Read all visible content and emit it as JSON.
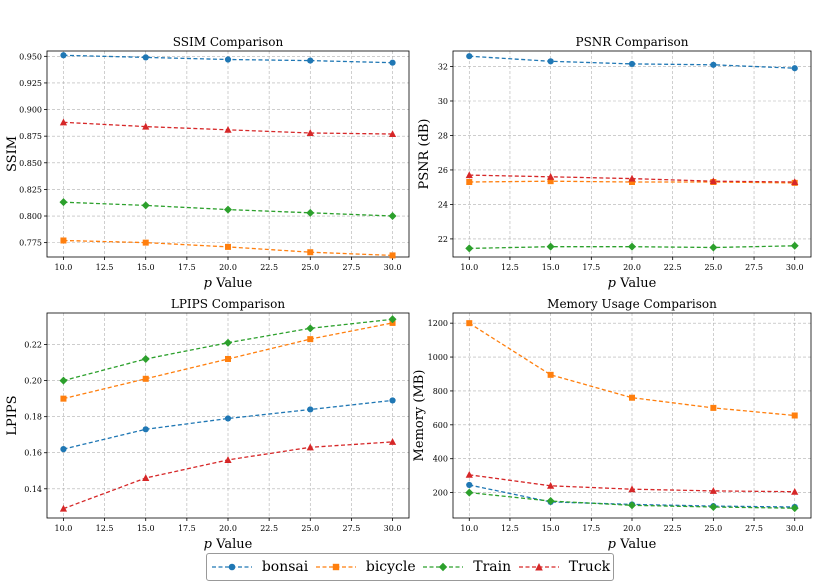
{
  "chart_data": [
    {
      "type": "line",
      "title": "SSIM Comparison",
      "xlabel": "p Value",
      "ylabel": "SSIM",
      "x": [
        10,
        15,
        20,
        25,
        30
      ],
      "xlim": [
        9.0,
        31.0
      ],
      "ylim": [
        0.7615,
        0.955
      ],
      "xticks": [
        "10.0",
        "12.5",
        "15.0",
        "17.5",
        "20.0",
        "22.5",
        "25.0",
        "27.5",
        "30.0"
      ],
      "yticks": [
        "0.775",
        "0.800",
        "0.825",
        "0.850",
        "0.875",
        "0.900",
        "0.925",
        "0.950"
      ],
      "series": [
        {
          "name": "bonsai",
          "values": [
            0.951,
            0.949,
            0.947,
            0.946,
            0.944
          ]
        },
        {
          "name": "bicycle",
          "values": [
            0.777,
            0.775,
            0.771,
            0.766,
            0.763
          ]
        },
        {
          "name": "Train",
          "values": [
            0.813,
            0.81,
            0.806,
            0.803,
            0.8
          ]
        },
        {
          "name": "Truck",
          "values": [
            0.888,
            0.884,
            0.881,
            0.878,
            0.877
          ]
        }
      ]
    },
    {
      "type": "line",
      "title": "PSNR Comparison",
      "xlabel": "p Value",
      "ylabel": "PSNR (dB)",
      "x": [
        10,
        15,
        20,
        25,
        30
      ],
      "xlim": [
        9.0,
        31.0
      ],
      "ylim": [
        20.95,
        32.9
      ],
      "xticks": [
        "10.0",
        "12.5",
        "15.0",
        "17.5",
        "20.0",
        "22.5",
        "25.0",
        "27.5",
        "30.0"
      ],
      "yticks": [
        "22",
        "24",
        "26",
        "28",
        "30",
        "32"
      ],
      "series": [
        {
          "name": "bonsai",
          "values": [
            32.6,
            32.3,
            32.15,
            32.1,
            31.9
          ]
        },
        {
          "name": "bicycle",
          "values": [
            25.3,
            25.35,
            25.3,
            25.3,
            25.25
          ]
        },
        {
          "name": "Train",
          "values": [
            21.45,
            21.55,
            21.55,
            21.5,
            21.6
          ]
        },
        {
          "name": "Truck",
          "values": [
            25.7,
            25.6,
            25.5,
            25.35,
            25.3
          ]
        }
      ]
    },
    {
      "type": "line",
      "title": "LPIPS Comparison",
      "xlabel": "p Value",
      "ylabel": "LPIPS",
      "x": [
        10,
        15,
        20,
        25,
        30
      ],
      "xlim": [
        9.0,
        31.0
      ],
      "ylim": [
        0.1238,
        0.2375
      ],
      "xticks": [
        "10.0",
        "12.5",
        "15.0",
        "17.5",
        "20.0",
        "22.5",
        "25.0",
        "27.5",
        "30.0"
      ],
      "yticks": [
        "0.14",
        "0.16",
        "0.18",
        "0.20",
        "0.22"
      ],
      "series": [
        {
          "name": "bonsai",
          "values": [
            0.162,
            0.173,
            0.179,
            0.184,
            0.189
          ]
        },
        {
          "name": "bicycle",
          "values": [
            0.19,
            0.201,
            0.212,
            0.223,
            0.232
          ]
        },
        {
          "name": "Train",
          "values": [
            0.2,
            0.212,
            0.221,
            0.229,
            0.234
          ]
        },
        {
          "name": "Truck",
          "values": [
            0.129,
            0.146,
            0.156,
            0.163,
            0.166
          ]
        }
      ]
    },
    {
      "type": "line",
      "title": "Memory Usage Comparison",
      "xlabel": "p Value",
      "ylabel": "Memory (MB)",
      "x": [
        10,
        15,
        20,
        25,
        30
      ],
      "xlim": [
        9.0,
        31.0
      ],
      "ylim": [
        50,
        1260
      ],
      "xticks": [
        "10.0",
        "12.5",
        "15.0",
        "17.5",
        "20.0",
        "22.5",
        "25.0",
        "27.5",
        "30.0"
      ],
      "yticks": [
        "200",
        "400",
        "600",
        "800",
        "1000",
        "1200"
      ],
      "series": [
        {
          "name": "bonsai",
          "values": [
            245,
            145,
            130,
            120,
            115
          ]
        },
        {
          "name": "bicycle",
          "values": [
            1200,
            895,
            760,
            700,
            655
          ]
        },
        {
          "name": "Train",
          "values": [
            200,
            150,
            125,
            115,
            108
          ]
        },
        {
          "name": "Truck",
          "values": [
            305,
            240,
            220,
            210,
            205
          ]
        }
      ]
    }
  ],
  "legend": {
    "position": "bottom-center",
    "entries": [
      {
        "name": "bonsai",
        "color": "#1f77b4",
        "marker": "circle"
      },
      {
        "name": "bicycle",
        "color": "#ff7f0e",
        "marker": "square"
      },
      {
        "name": "Train",
        "color": "#2ca02c",
        "marker": "diamond"
      },
      {
        "name": "Truck",
        "color": "#d62728",
        "marker": "triangle"
      }
    ]
  },
  "colors": {
    "bonsai": "#1f77b4",
    "bicycle": "#ff7f0e",
    "Train": "#2ca02c",
    "Truck": "#d62728"
  }
}
